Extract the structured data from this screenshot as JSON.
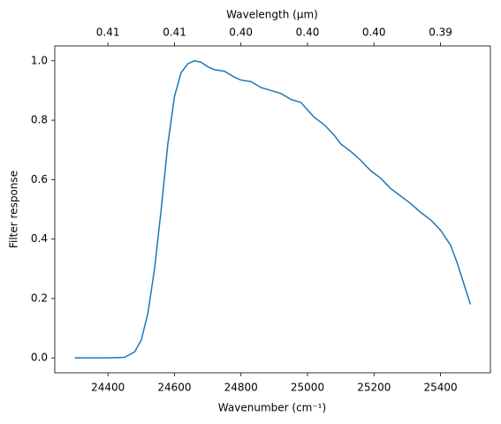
{
  "chart_data": {
    "type": "line",
    "xlabel": "Wavenumber (cm⁻¹)",
    "ylabel": "Filter response",
    "x2label": "Wavelength (μm)",
    "x": [
      24300,
      24400,
      24450,
      24480,
      24500,
      24520,
      24540,
      24560,
      24580,
      24600,
      24620,
      24640,
      24660,
      24680,
      24700,
      24720,
      24750,
      24780,
      24800,
      24830,
      24860,
      24890,
      24920,
      24950,
      24980,
      25000,
      25020,
      25050,
      25080,
      25100,
      25130,
      25160,
      25190,
      25220,
      25250,
      25280,
      25310,
      25340,
      25370,
      25400,
      25430,
      25450,
      25470,
      25490
    ],
    "series": [
      {
        "color": "#1f77b4",
        "values": [
          0,
          0,
          0.002,
          0.02,
          0.06,
          0.15,
          0.3,
          0.5,
          0.72,
          0.88,
          0.96,
          0.99,
          1.0,
          0.995,
          0.98,
          0.97,
          0.965,
          0.945,
          0.935,
          0.93,
          0.91,
          0.9,
          0.89,
          0.87,
          0.86,
          0.835,
          0.81,
          0.785,
          0.75,
          0.72,
          0.695,
          0.665,
          0.63,
          0.605,
          0.57,
          0.545,
          0.52,
          0.49,
          0.465,
          0.43,
          0.38,
          0.32,
          0.25,
          0.18
        ]
      }
    ],
    "xlim": [
      24240,
      25550
    ],
    "xticks": [
      24400,
      24600,
      24800,
      25000,
      25200,
      25400
    ],
    "ylim": [
      -0.05,
      1.05
    ],
    "yticks": [
      {
        "value": 0,
        "label": "0.0"
      },
      {
        "value": 0.2,
        "label": "0.2"
      },
      {
        "value": 0.4,
        "label": "0.4"
      },
      {
        "value": 0.6,
        "label": "0.6"
      },
      {
        "value": 0.8,
        "label": "0.8"
      },
      {
        "value": 1,
        "label": "1.0"
      }
    ],
    "x2ticks": [
      {
        "value": 0.40984,
        "label": "0.41"
      },
      {
        "value": 0.4065,
        "label": "0.41"
      },
      {
        "value": 0.40323,
        "label": "0.40"
      },
      {
        "value": 0.4,
        "label": "0.40"
      },
      {
        "value": 0.39683,
        "label": "0.40"
      },
      {
        "value": 0.3937,
        "label": "0.39"
      }
    ]
  }
}
